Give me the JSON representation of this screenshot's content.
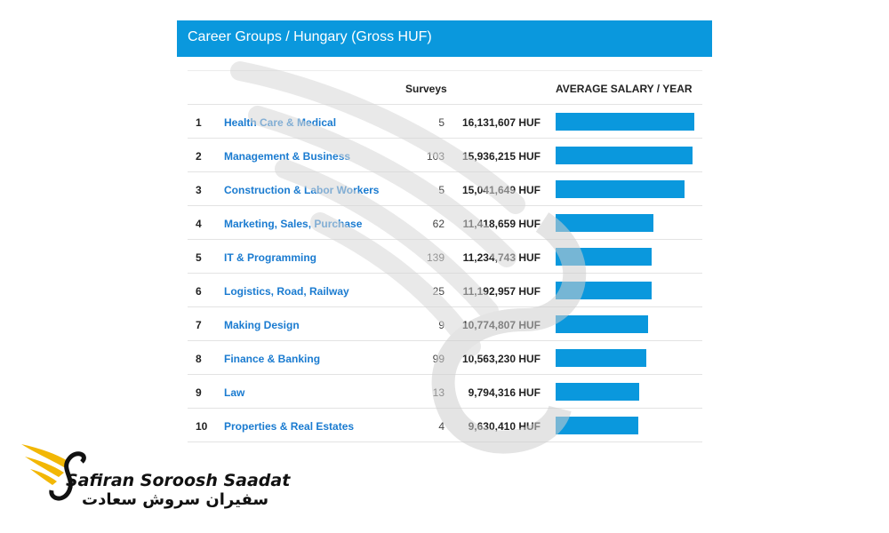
{
  "panel": {
    "title": "Career Groups / Hungary (Gross HUF)"
  },
  "table": {
    "headers": {
      "surveys": "Surveys",
      "avg_salary": "AVERAGE SALARY / YEAR"
    },
    "rows": [
      {
        "rank": "1",
        "name": "Health Care & Medical",
        "surveys": "5",
        "salary": "16,131,607 HUF",
        "bar_fraction": 0.96
      },
      {
        "rank": "2",
        "name": "Management & Business",
        "surveys": "103",
        "salary": "15,936,215 HUF",
        "bar_fraction": 0.948
      },
      {
        "rank": "3",
        "name": "Construction & Labor Workers",
        "surveys": "5",
        "salary": "15,041,649 HUF",
        "bar_fraction": 0.895
      },
      {
        "rank": "4",
        "name": "Marketing, Sales, Purchase",
        "surveys": "62",
        "salary": "11,418,659 HUF",
        "bar_fraction": 0.679
      },
      {
        "rank": "5",
        "name": "IT & Programming",
        "surveys": "139",
        "salary": "11,234,743 HUF",
        "bar_fraction": 0.668
      },
      {
        "rank": "6",
        "name": "Logistics, Road, Railway",
        "surveys": "25",
        "salary": "11,192,957 HUF",
        "bar_fraction": 0.666
      },
      {
        "rank": "7",
        "name": "Making Design",
        "surveys": "9",
        "salary": "10,774,807 HUF",
        "bar_fraction": 0.641
      },
      {
        "rank": "8",
        "name": "Finance & Banking",
        "surveys": "99",
        "salary": "10,563,230 HUF",
        "bar_fraction": 0.628
      },
      {
        "rank": "9",
        "name": "Law",
        "surveys": "13",
        "salary": "9,794,316 HUF",
        "bar_fraction": 0.583
      },
      {
        "rank": "10",
        "name": "Properties & Real Estates",
        "surveys": "4",
        "salary": "9,630,410 HUF",
        "bar_fraction": 0.573
      }
    ]
  },
  "logo": {
    "name_en": "Safiran Soroosh Saadat",
    "name_fa": "سفیران سروش سعادت"
  },
  "colors": {
    "accent": "#0a98dd",
    "link": "#1a7bd0",
    "logo_gold": "#f2b705"
  },
  "icons": {
    "logo": "wing-s-logo-icon",
    "watermark": "wing-s-watermark-icon"
  }
}
